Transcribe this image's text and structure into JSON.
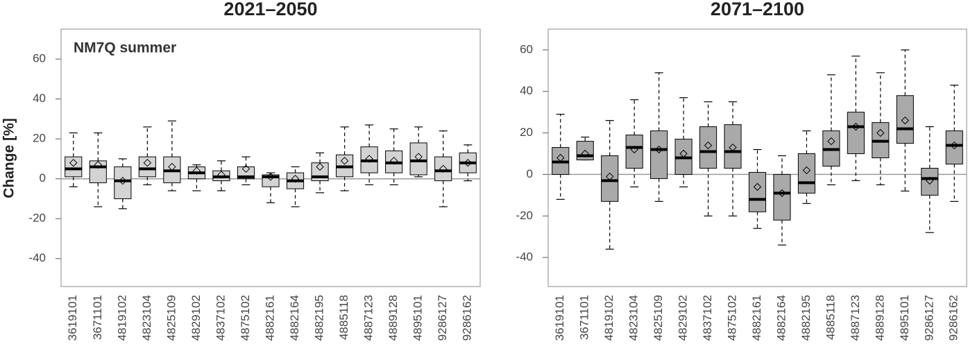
{
  "chart_data": [
    {
      "type": "box",
      "title": "2021–2050",
      "ylabel": "Change [%]",
      "annotation": "NM7Q summer",
      "color": "#d3d3d3",
      "categories": [
        "3619101",
        "3671101",
        "4819102",
        "4823104",
        "4825109",
        "4829102",
        "4837102",
        "4875102",
        "4882161",
        "4882164",
        "4882195",
        "4885118",
        "4887123",
        "4889128",
        "4895101",
        "9286127",
        "9286162"
      ],
      "whisker_low": [
        -4,
        -14,
        -15,
        -3,
        -6,
        -6,
        -6,
        -3,
        -12,
        -14,
        -7,
        -6,
        -3,
        -3,
        1,
        -14,
        -1
      ],
      "q1": [
        1,
        -2,
        -10,
        1,
        -2,
        0,
        -1,
        0,
        -4,
        -5,
        -1,
        1,
        3,
        3,
        2,
        -1,
        3
      ],
      "median": [
        5,
        6,
        -1,
        5,
        4,
        3,
        1,
        1,
        1,
        -1,
        1,
        6,
        9,
        8,
        9,
        4,
        8
      ],
      "q3": [
        11,
        9,
        6,
        11,
        11,
        6,
        4,
        6,
        2,
        3,
        8,
        12,
        16,
        14,
        18,
        11,
        13
      ],
      "whisker_high": [
        23,
        23,
        10,
        26,
        29,
        7,
        9,
        11,
        3,
        6,
        13,
        26,
        27,
        25,
        26,
        24,
        17
      ],
      "mean": [
        8,
        7,
        -1,
        8,
        6,
        4,
        2,
        5,
        1,
        0,
        6,
        9,
        10,
        9,
        11,
        5,
        8
      ],
      "hline": 0,
      "ylim": [
        -54,
        75
      ],
      "yticks": [
        -40,
        -20,
        0,
        20,
        40,
        60
      ]
    },
    {
      "type": "box",
      "title": "2071–2100",
      "color": "#a9a9a9",
      "categories": [
        "3619101",
        "3671101",
        "4819102",
        "4823104",
        "4825109",
        "4829102",
        "4837102",
        "4875102",
        "4882161",
        "4882164",
        "4882195",
        "4885118",
        "4887123",
        "4889128",
        "4895101",
        "9286127",
        "9286162"
      ],
      "whisker_low": [
        -12,
        7,
        -36,
        -6,
        -13,
        -6,
        -20,
        -20,
        -26,
        -34,
        -14,
        -5,
        -3,
        -5,
        -8,
        -28,
        -13
      ],
      "q1": [
        0,
        7,
        -13,
        3,
        -2,
        0,
        3,
        3,
        -18,
        -22,
        -9,
        4,
        10,
        8,
        15,
        -10,
        5
      ],
      "median": [
        6,
        9,
        -3,
        13,
        12,
        8,
        11,
        11,
        -12,
        -9,
        -4,
        12,
        23,
        16,
        22,
        -2,
        14
      ],
      "q3": [
        13,
        16,
        9,
        19,
        21,
        17,
        23,
        24,
        1,
        0,
        10,
        21,
        30,
        25,
        38,
        3,
        21
      ],
      "whisker_high": [
        29,
        18,
        26,
        36,
        49,
        37,
        35,
        35,
        12,
        9,
        21,
        48,
        57,
        49,
        60,
        23,
        43
      ],
      "mean": [
        8,
        10,
        -1,
        12,
        12,
        10,
        14,
        13,
        -6,
        -9,
        2,
        16,
        23,
        20,
        26,
        -3,
        14
      ],
      "hline": 0,
      "ylim": [
        -54,
        70
      ],
      "yticks": [
        -40,
        -20,
        0,
        20,
        40,
        60
      ]
    }
  ]
}
